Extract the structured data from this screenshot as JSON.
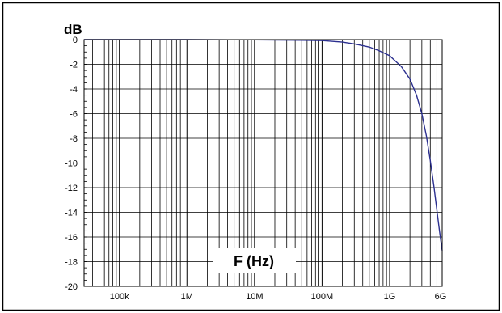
{
  "chart_data": {
    "type": "line",
    "ylabel": "dB",
    "xlabel": "F (Hz)",
    "x_scale": "log",
    "xlim": [
      30000,
      6000000000
    ],
    "ylim": [
      -20,
      0
    ],
    "x_ticks": [
      {
        "value": 100000,
        "label": "100k"
      },
      {
        "value": 1000000,
        "label": "1M"
      },
      {
        "value": 10000000,
        "label": "10M"
      },
      {
        "value": 100000000,
        "label": "100M"
      },
      {
        "value": 1000000000,
        "label": "1G"
      },
      {
        "value": 6000000000,
        "label": "6G"
      }
    ],
    "y_ticks": [
      0,
      -2,
      -4,
      -6,
      -8,
      -10,
      -12,
      -14,
      -16,
      -18,
      -20
    ],
    "grid": true,
    "line_color": "#2b2f8f",
    "series": [
      {
        "x": [
          30000,
          1000000,
          10000000,
          50000000,
          100000000,
          200000000,
          300000000,
          500000000,
          700000000,
          1000000000,
          1500000000,
          2000000000,
          2500000000,
          3000000000,
          3500000000,
          4000000000,
          4500000000,
          5000000000,
          5500000000,
          6000000000
        ],
        "y": [
          0,
          0,
          -0.02,
          -0.05,
          -0.08,
          -0.2,
          -0.35,
          -0.6,
          -0.9,
          -1.3,
          -2.2,
          -3.2,
          -4.5,
          -6.0,
          -7.8,
          -9.8,
          -11.8,
          -13.8,
          -15.6,
          -17.1
        ]
      }
    ]
  }
}
